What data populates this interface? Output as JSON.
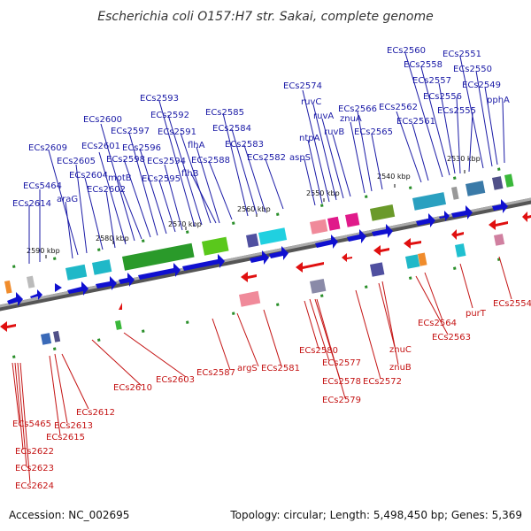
{
  "title": "Escherichia coli O157:H7 str. Sakai, complete genome",
  "accession": "Accession: NC_002695",
  "topology": "Topology: circular; Length: 5,498,450 bp; Genes: 5,369",
  "colors": {
    "forward_label": "#1a1aa6",
    "reverse_label": "#c41414",
    "forward_gene": "#1010d0",
    "reverse_gene": "#e01010",
    "backbone": "#888888"
  },
  "ticks": [
    "2590 kbp",
    "2580 kbp",
    "2570 kbp",
    "2560 kbp",
    "2550 kbp",
    "2540 kbp",
    "2530 kbp"
  ],
  "forward_genes": [
    "ECs2614",
    "ECs5464",
    "araG",
    "ECs2609",
    "ECs2605",
    "ECs2604",
    "ECs2602",
    "ECs2601",
    "ECs2600",
    "motB",
    "ECs2598",
    "ECs2597",
    "ECs2596",
    "ECs2595",
    "ECs2594",
    "ECs2593",
    "ECs2592",
    "ECs2591",
    "flhB",
    "flhA",
    "ECs2588",
    "ECs2585",
    "ECs2584",
    "ECs2583",
    "ECs2582",
    "aspS",
    "ntpA",
    "ECs2574",
    "ruvC",
    "ruvA",
    "ruvB",
    "znuA",
    "ECs2566",
    "ECs2565",
    "ECs2562",
    "ECs2561",
    "ECs2560",
    "ECs2558",
    "ECs2557",
    "ECs2556",
    "ECs2555",
    "ECs2551",
    "ECs2550",
    "ECs2549",
    "pphA"
  ],
  "reverse_genes": [
    "ECs5465",
    "ECs2622",
    "ECs2623",
    "ECs2624",
    "ECs2615",
    "ECs2613",
    "ECs2612",
    "ECs2610",
    "ECs2603",
    "ECs2587",
    "argS",
    "ECs2581",
    "ECs2580",
    "ECs2577",
    "ECs2578",
    "ECs2579",
    "ECs2572",
    "znuC",
    "znuB",
    "ECs2564",
    "ECs2563",
    "purT",
    "ECs2554"
  ]
}
